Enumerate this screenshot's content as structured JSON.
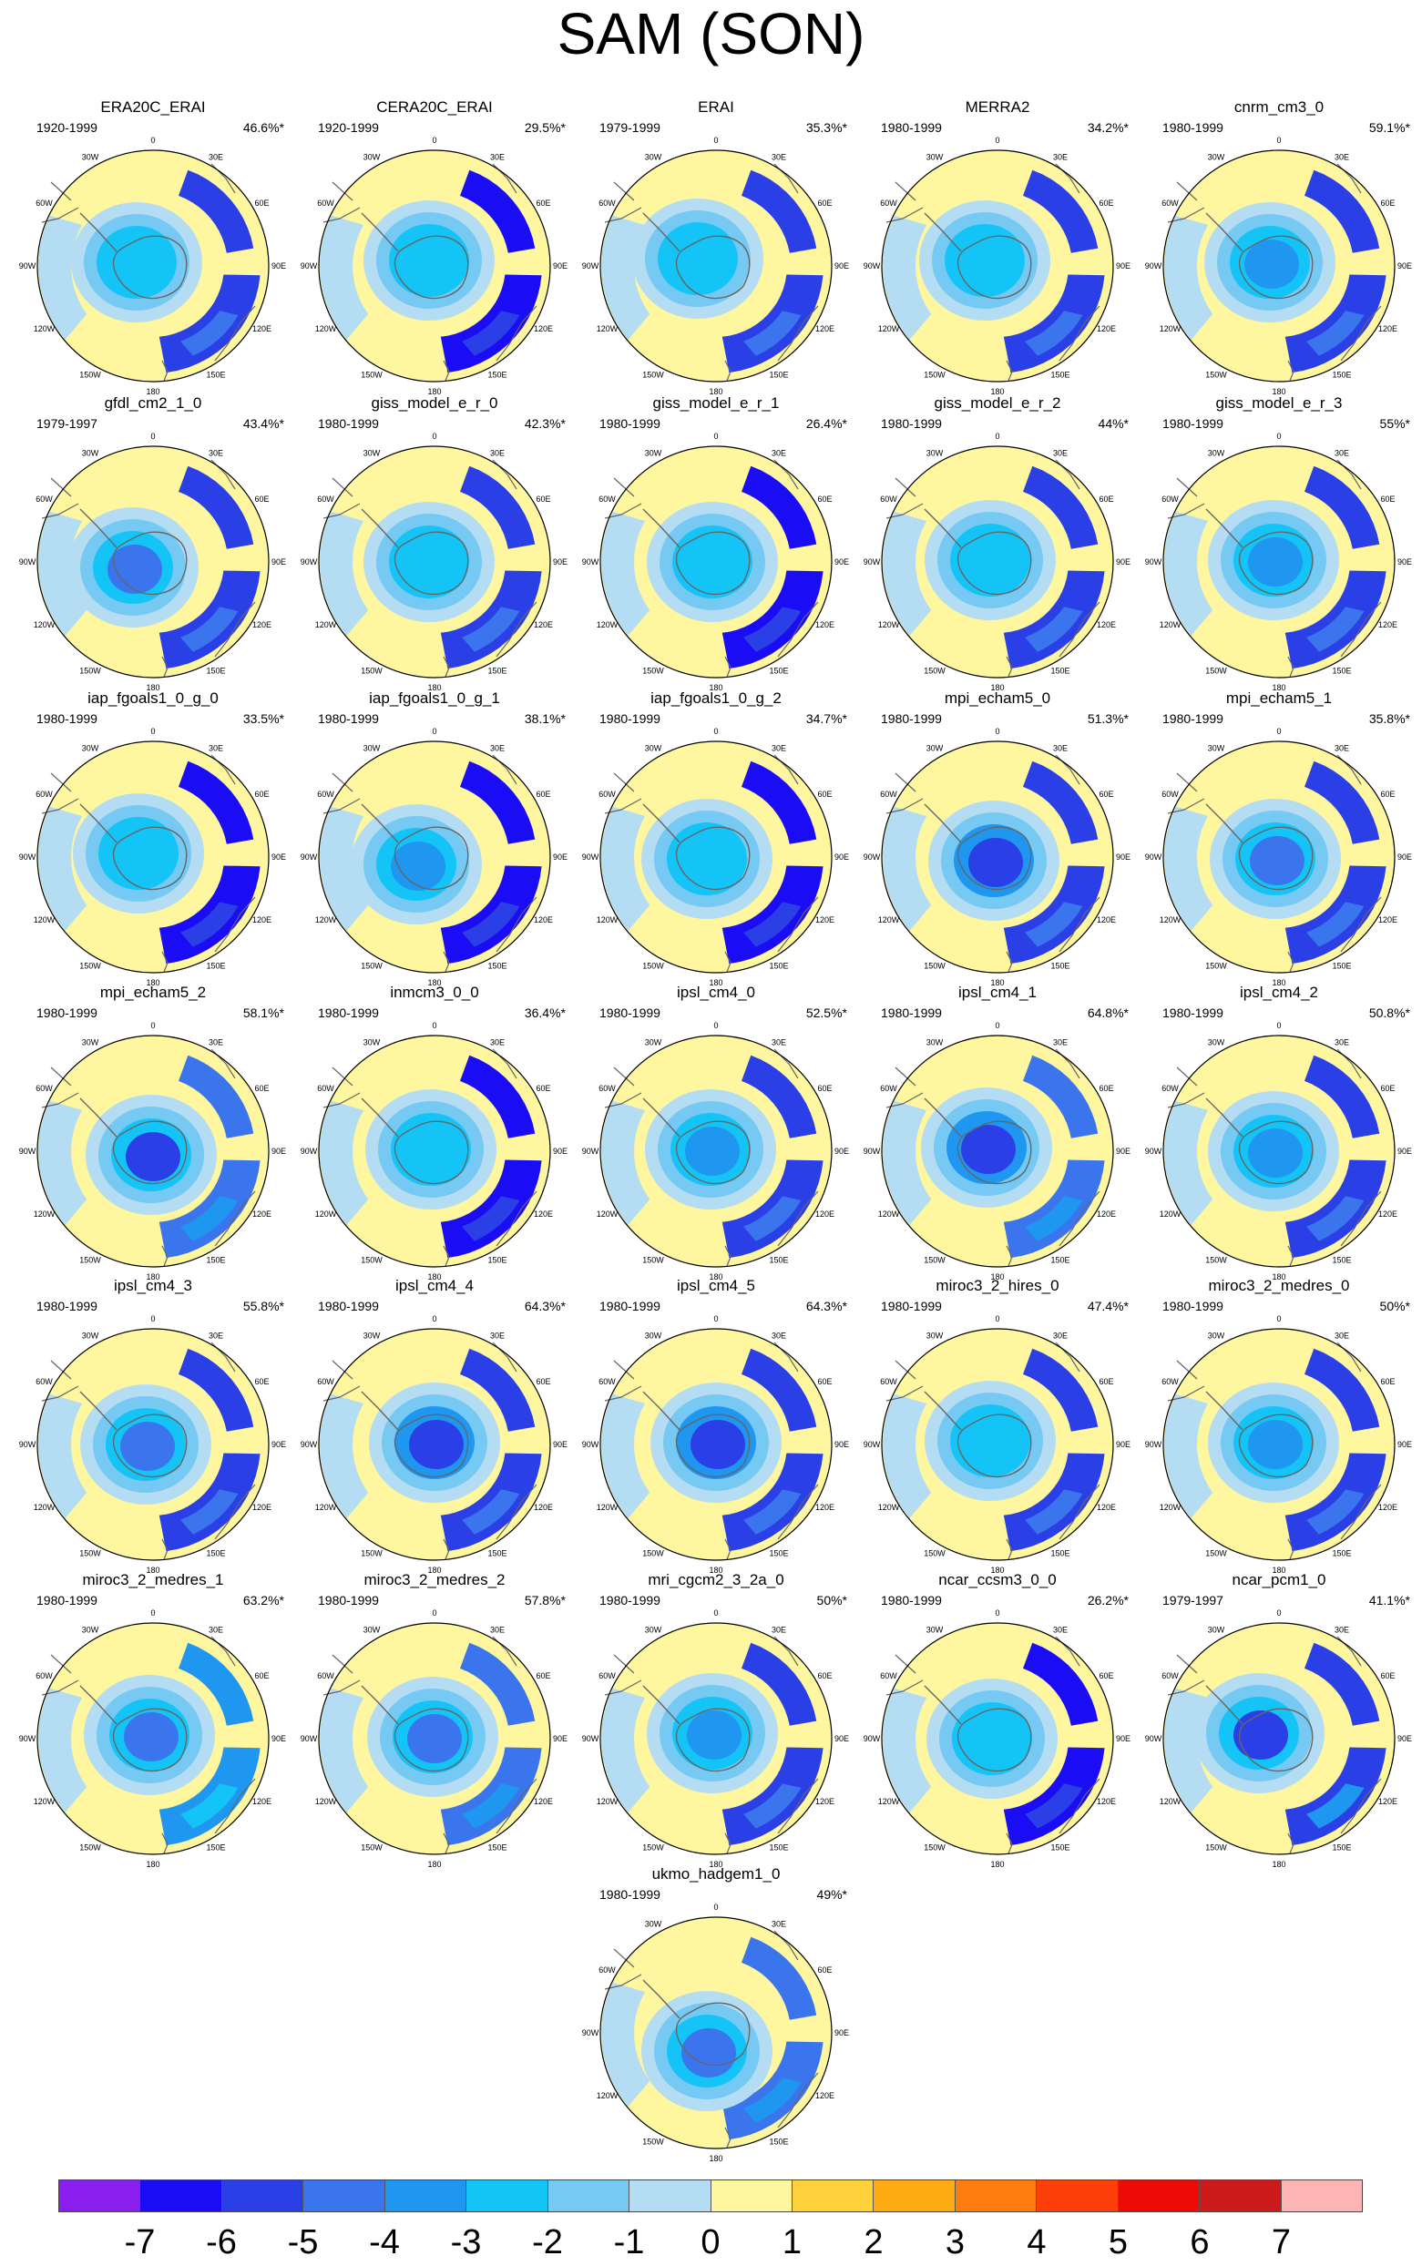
{
  "title": "SAM (SON)",
  "longitude_labels": [
    "0",
    "30E",
    "60E",
    "90E",
    "120E",
    "150E",
    "180",
    "150W",
    "120W",
    "90W",
    "60W",
    "30W"
  ],
  "colorbar": {
    "labels": [
      "-7",
      "-6",
      "-5",
      "-4",
      "-3",
      "-2",
      "-1",
      "0",
      "1",
      "2",
      "3",
      "4",
      "5",
      "6",
      "7"
    ],
    "colors": [
      "#8a1fee",
      "#1a0cf5",
      "#2a3fe6",
      "#3a75ee",
      "#1f96f0",
      "#14c4f6",
      "#76c9f2",
      "#b4dcf3",
      "#fff7a0",
      "#ffd23c",
      "#ffab14",
      "#ff7d0f",
      "#ff3f0a",
      "#ee0a05",
      "#cd1a1a",
      "#fdb4b4"
    ]
  },
  "panels": [
    {
      "name": "ERA20C_ERAI",
      "years": "1920-1999",
      "pct": "46.6%*"
    },
    {
      "name": "CERA20C_ERAI",
      "years": "1920-1999",
      "pct": "29.5%*"
    },
    {
      "name": "ERAI",
      "years": "1979-1999",
      "pct": "35.3%*"
    },
    {
      "name": "MERRA2",
      "years": "1980-1999",
      "pct": "34.2%*"
    },
    {
      "name": "cnrm_cm3_0",
      "years": "1980-1999",
      "pct": "59.1%*"
    },
    {
      "name": "gfdl_cm2_1_0",
      "years": "1979-1997",
      "pct": "43.4%*"
    },
    {
      "name": "giss_model_e_r_0",
      "years": "1980-1999",
      "pct": "42.3%*"
    },
    {
      "name": "giss_model_e_r_1",
      "years": "1980-1999",
      "pct": "26.4%*"
    },
    {
      "name": "giss_model_e_r_2",
      "years": "1980-1999",
      "pct": "44%*"
    },
    {
      "name": "giss_model_e_r_3",
      "years": "1980-1999",
      "pct": "55%*"
    },
    {
      "name": "iap_fgoals1_0_g_0",
      "years": "1980-1999",
      "pct": "33.5%*"
    },
    {
      "name": "iap_fgoals1_0_g_1",
      "years": "1980-1999",
      "pct": "38.1%*"
    },
    {
      "name": "iap_fgoals1_0_g_2",
      "years": "1980-1999",
      "pct": "34.7%*"
    },
    {
      "name": "mpi_echam5_0",
      "years": "1980-1999",
      "pct": "51.3%*"
    },
    {
      "name": "mpi_echam5_1",
      "years": "1980-1999",
      "pct": "35.8%*"
    },
    {
      "name": "mpi_echam5_2",
      "years": "1980-1999",
      "pct": "58.1%*"
    },
    {
      "name": "inmcm3_0_0",
      "years": "1980-1999",
      "pct": "36.4%*"
    },
    {
      "name": "ipsl_cm4_0",
      "years": "1980-1999",
      "pct": "52.5%*"
    },
    {
      "name": "ipsl_cm4_1",
      "years": "1980-1999",
      "pct": "64.8%*"
    },
    {
      "name": "ipsl_cm4_2",
      "years": "1980-1999",
      "pct": "50.8%*"
    },
    {
      "name": "ipsl_cm4_3",
      "years": "1980-1999",
      "pct": "55.8%*"
    },
    {
      "name": "ipsl_cm4_4",
      "years": "1980-1999",
      "pct": "64.3%*"
    },
    {
      "name": "ipsl_cm4_5",
      "years": "1980-1999",
      "pct": "64.3%*"
    },
    {
      "name": "miroc3_2_hires_0",
      "years": "1980-1999",
      "pct": "47.4%*"
    },
    {
      "name": "miroc3_2_medres_0",
      "years": "1980-1999",
      "pct": "50%*"
    },
    {
      "name": "miroc3_2_medres_1",
      "years": "1980-1999",
      "pct": "63.2%*"
    },
    {
      "name": "miroc3_2_medres_2",
      "years": "1980-1999",
      "pct": "57.8%*"
    },
    {
      "name": "mri_cgcm2_3_2a_0",
      "years": "1980-1999",
      "pct": "50%*"
    },
    {
      "name": "ncar_ccsm3_0_0",
      "years": "1980-1999",
      "pct": "26.2%*"
    },
    {
      "name": "ncar_pcm1_0",
      "years": "1979-1997",
      "pct": "41.1%*"
    },
    {
      "name": "ukmo_hadgem1_0",
      "years": "1980-1999",
      "pct": "49%*"
    }
  ]
}
